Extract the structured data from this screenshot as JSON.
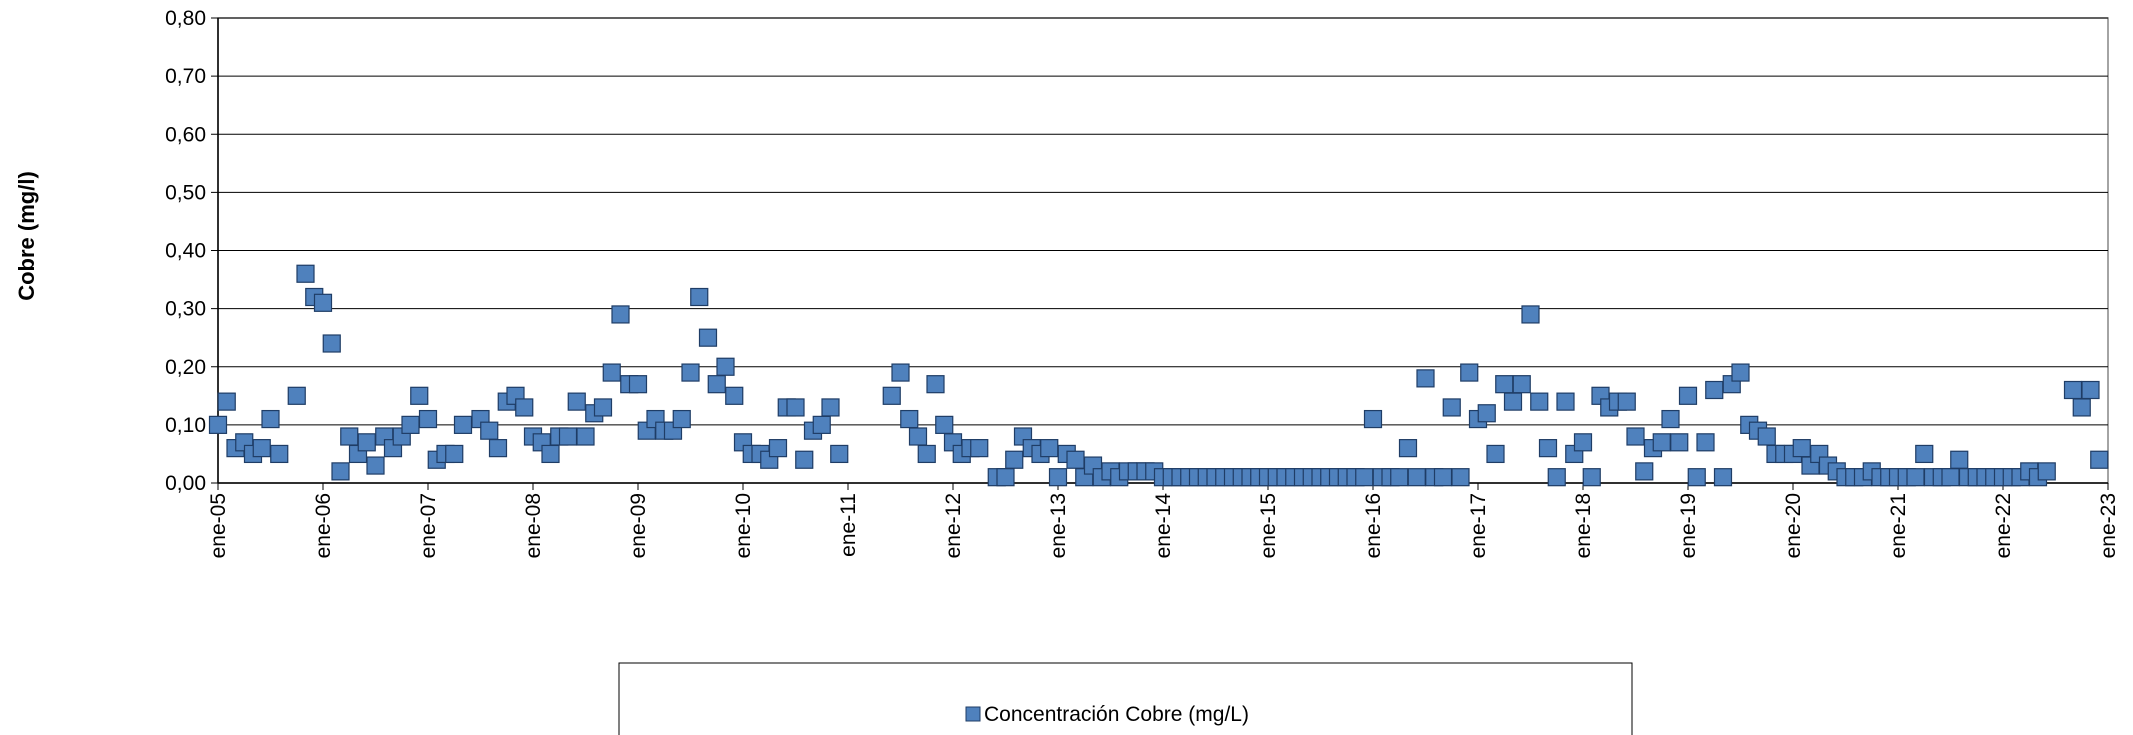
{
  "chart_data": {
    "type": "scatter",
    "y_label": "Cobre (mg/l)",
    "ylim": [
      0,
      0.8
    ],
    "yticks": [
      {
        "value": 0,
        "label": "0,00"
      },
      {
        "value": 0.1,
        "label": "0,10"
      },
      {
        "value": 0.2,
        "label": "0,20"
      },
      {
        "value": 0.3,
        "label": "0,30"
      },
      {
        "value": 0.4,
        "label": "0,40"
      },
      {
        "value": 0.5,
        "label": "0,50"
      },
      {
        "value": 0.6,
        "label": "0,60"
      },
      {
        "value": 0.7,
        "label": "0,70"
      },
      {
        "value": 0.8,
        "label": "0,80"
      }
    ],
    "xlim": [
      "2005-01",
      "2023-01"
    ],
    "xticks": [
      {
        "value": "2005-01",
        "label": "ene-05"
      },
      {
        "value": "2006-01",
        "label": "ene-06"
      },
      {
        "value": "2007-01",
        "label": "ene-07"
      },
      {
        "value": "2008-01",
        "label": "ene-08"
      },
      {
        "value": "2009-01",
        "label": "ene-09"
      },
      {
        "value": "2010-01",
        "label": "ene-10"
      },
      {
        "value": "2011-01",
        "label": "ene-11"
      },
      {
        "value": "2012-01",
        "label": "ene-12"
      },
      {
        "value": "2013-01",
        "label": "ene-13"
      },
      {
        "value": "2014-01",
        "label": "ene-14"
      },
      {
        "value": "2015-01",
        "label": "ene-15"
      },
      {
        "value": "2016-01",
        "label": "ene-16"
      },
      {
        "value": "2017-01",
        "label": "ene-17"
      },
      {
        "value": "2018-01",
        "label": "ene-18"
      },
      {
        "value": "2019-01",
        "label": "ene-19"
      },
      {
        "value": "2020-01",
        "label": "ene-20"
      },
      {
        "value": "2021-01",
        "label": "ene-21"
      },
      {
        "value": "2022-01",
        "label": "ene-22"
      },
      {
        "value": "2023-01",
        "label": "ene-23"
      }
    ],
    "grid": true,
    "legend": "bottom",
    "x": [
      "2005-01",
      "2005-02",
      "2005-03",
      "2005-04",
      "2005-05",
      "2005-06",
      "2005-07",
      "2005-08",
      "2005-10",
      "2005-11",
      "2005-12",
      "2006-01",
      "2006-02",
      "2006-03",
      "2006-04",
      "2006-05",
      "2006-06",
      "2006-07",
      "2006-08",
      "2006-09",
      "2006-10",
      "2006-11",
      "2006-12",
      "2007-01",
      "2007-02",
      "2007-03",
      "2007-04",
      "2007-05",
      "2007-07",
      "2007-08",
      "2007-09",
      "2007-10",
      "2007-11",
      "2007-12",
      "2008-01",
      "2008-02",
      "2008-03",
      "2008-04",
      "2008-05",
      "2008-06",
      "2008-07",
      "2008-08",
      "2008-09",
      "2008-10",
      "2008-11",
      "2008-12",
      "2009-01",
      "2009-02",
      "2009-03",
      "2009-04",
      "2009-05",
      "2009-06",
      "2009-07",
      "2009-08",
      "2009-09",
      "2009-10",
      "2009-11",
      "2009-12",
      "2010-01",
      "2010-02",
      "2010-03",
      "2010-04",
      "2010-05",
      "2010-06",
      "2010-07",
      "2010-08",
      "2010-09",
      "2010-10",
      "2010-11",
      "2010-12",
      "2011-06",
      "2011-07",
      "2011-08",
      "2011-09",
      "2011-10",
      "2011-11",
      "2011-12",
      "2012-01",
      "2012-02",
      "2012-03",
      "2012-04",
      "2012-06",
      "2012-07",
      "2012-08",
      "2012-09",
      "2012-10",
      "2012-11",
      "2012-12",
      "2013-01",
      "2013-02",
      "2013-03",
      "2013-04",
      "2013-05",
      "2013-06",
      "2013-07",
      "2013-08",
      "2013-09",
      "2013-10",
      "2013-11",
      "2013-12",
      "2014-01",
      "2014-02",
      "2014-03",
      "2014-04",
      "2014-05",
      "2014-06",
      "2014-07",
      "2014-08",
      "2014-09",
      "2014-10",
      "2014-11",
      "2014-12",
      "2015-01",
      "2015-02",
      "2015-03",
      "2015-04",
      "2015-05",
      "2015-06",
      "2015-07",
      "2015-08",
      "2015-09",
      "2015-10",
      "2015-11",
      "2015-12",
      "2016-01",
      "2016-02",
      "2016-03",
      "2016-04",
      "2016-05",
      "2016-06",
      "2016-07",
      "2016-08",
      "2016-09",
      "2016-10",
      "2016-11",
      "2016-12",
      "2017-01",
      "2017-02",
      "2017-03",
      "2017-04",
      "2017-05",
      "2017-06",
      "2017-07",
      "2017-08",
      "2017-09",
      "2017-10",
      "2017-11",
      "2017-12",
      "2018-01",
      "2018-02",
      "2018-03",
      "2018-04",
      "2018-05",
      "2018-06",
      "2018-07",
      "2018-08",
      "2018-09",
      "2018-10",
      "2018-11",
      "2018-12",
      "2019-01",
      "2019-02",
      "2019-03",
      "2019-04",
      "2019-05",
      "2019-06",
      "2019-07",
      "2019-08",
      "2019-09",
      "2019-10",
      "2019-11",
      "2019-12",
      "2020-01",
      "2020-02",
      "2020-03",
      "2020-04",
      "2020-05",
      "2020-06",
      "2020-07",
      "2020-08",
      "2020-09",
      "2020-10",
      "2020-11",
      "2020-12",
      "2021-01",
      "2021-02",
      "2021-03",
      "2021-04",
      "2021-05",
      "2021-06",
      "2021-07",
      "2021-08",
      "2021-09",
      "2021-10",
      "2021-11",
      "2021-12",
      "2022-01",
      "2022-02",
      "2022-03",
      "2022-04",
      "2022-05",
      "2022-06",
      "2022-09",
      "2022-10",
      "2022-11",
      "2022-12"
    ],
    "series": [
      {
        "name": "Concentración Cobre (mg/L)",
        "color": "#4f81bd",
        "values": [
          0.1,
          0.14,
          0.06,
          0.07,
          0.05,
          0.06,
          0.11,
          0.05,
          0.15,
          0.36,
          0.32,
          0.31,
          0.24,
          0.02,
          0.08,
          0.05,
          0.07,
          0.03,
          0.08,
          0.06,
          0.08,
          0.1,
          0.15,
          0.11,
          0.04,
          0.05,
          0.05,
          0.1,
          0.11,
          0.09,
          0.06,
          0.14,
          0.15,
          0.13,
          0.08,
          0.07,
          0.05,
          0.08,
          0.08,
          0.14,
          0.08,
          0.12,
          0.13,
          0.19,
          0.29,
          0.17,
          0.17,
          0.09,
          0.11,
          0.09,
          0.09,
          0.11,
          0.19,
          0.32,
          0.25,
          0.17,
          0.2,
          0.15,
          0.07,
          0.05,
          0.05,
          0.04,
          0.06,
          0.13,
          0.13,
          0.04,
          0.09,
          0.1,
          0.13,
          0.05,
          0.15,
          0.19,
          0.11,
          0.08,
          0.05,
          0.17,
          0.1,
          0.07,
          0.05,
          0.06,
          0.06,
          0.01,
          0.01,
          0.04,
          0.08,
          0.06,
          0.05,
          0.06,
          0.01,
          0.05,
          0.04,
          0.01,
          0.03,
          0.01,
          0.02,
          0.01,
          0.02,
          0.02,
          0.02,
          0.02,
          0.01,
          0.01,
          0.01,
          0.01,
          0.01,
          0.01,
          0.01,
          0.01,
          0.01,
          0.01,
          0.01,
          0.01,
          0.01,
          0.01,
          0.01,
          0.01,
          0.01,
          0.01,
          0.01,
          0.01,
          0.01,
          0.01,
          0.01,
          0.01,
          0.11,
          0.01,
          0.01,
          0.01,
          0.06,
          0.01,
          0.18,
          0.01,
          0.01,
          0.13,
          0.01,
          0.19,
          0.11,
          0.12,
          0.05,
          0.17,
          0.14,
          0.17,
          0.29,
          0.14,
          0.06,
          0.01,
          0.14,
          0.05,
          0.07,
          0.01,
          0.15,
          0.13,
          0.14,
          0.14,
          0.08,
          0.02,
          0.06,
          0.07,
          0.11,
          0.07,
          0.15,
          0.01,
          0.07,
          0.16,
          0.01,
          0.17,
          0.19,
          0.1,
          0.09,
          0.08,
          0.05,
          0.05,
          0.05,
          0.06,
          0.03,
          0.05,
          0.03,
          0.02,
          0.01,
          0.01,
          0.01,
          0.02,
          0.01,
          0.01,
          0.01,
          0.01,
          0.01,
          0.05,
          0.01,
          0.01,
          0.01,
          0.04,
          0.01,
          0.01,
          0.01,
          0.01,
          0.01,
          0.01,
          0.01,
          0.02,
          0.01,
          0.02,
          0.16,
          0.13,
          0.16,
          0.04
        ]
      }
    ]
  }
}
